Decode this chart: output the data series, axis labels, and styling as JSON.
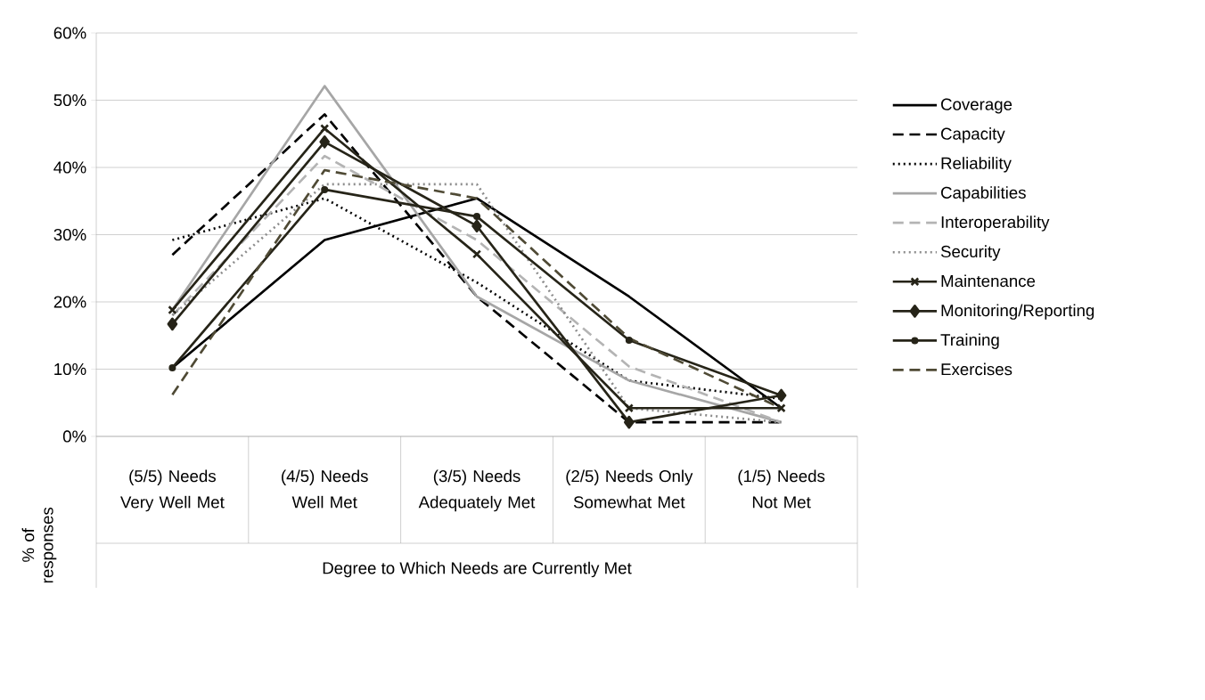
{
  "chart_data": {
    "type": "line",
    "xlabel": "Degree to Which Needs are Currently Met",
    "ylabel": "% of responses",
    "categories": [
      "(5/5) Needs Very Well Met",
      "(4/5) Needs Well Met",
      "(3/5) Needs Adequately Met",
      "(2/5) Needs Only Somewhat Met",
      "(1/5) Needs Not Met"
    ],
    "series": [
      {
        "name": "Coverage",
        "color": "#000000",
        "line_style": "solid",
        "values": [
          10.2,
          29.2,
          35.4,
          20.8,
          4.2
        ]
      },
      {
        "name": "Capacity",
        "color": "#000000",
        "line_style": "dashed",
        "values": [
          27,
          47.9,
          20.8,
          2.1,
          2.1
        ]
      },
      {
        "name": "Reliability",
        "color": "#000000",
        "line_style": "dotted",
        "values": [
          29.2,
          35.4,
          22.9,
          8.3,
          5.6
        ]
      },
      {
        "name": "Capabilities",
        "color": "#a6a6a6",
        "line_style": "solid",
        "values": [
          18.8,
          52.1,
          20.8,
          8.3,
          2.1
        ]
      },
      {
        "name": "Interoperability",
        "color": "#b4b4b4",
        "line_style": "dashed",
        "values": [
          18,
          41.7,
          29.2,
          10.4,
          2.1
        ]
      },
      {
        "name": "Security",
        "color": "#8c8c8c",
        "line_style": "dotted",
        "values": [
          18,
          37.5,
          37.5,
          4.2,
          2.1
        ]
      },
      {
        "name": "Maintenance",
        "color": "#262418",
        "line_style": "solid",
        "marker": "cross",
        "values": [
          18.8,
          45.8,
          27.1,
          4.2,
          4.2
        ]
      },
      {
        "name": "Monitoring/Reporting",
        "color": "#262418",
        "line_style": "solid",
        "marker": "diamond",
        "values": [
          16.7,
          43.8,
          31.3,
          2.1,
          6.1
        ]
      },
      {
        "name": "Training",
        "color": "#262418",
        "line_style": "solid",
        "marker": "circle",
        "values": [
          10.2,
          36.7,
          32.7,
          14.3,
          6.1
        ]
      },
      {
        "name": "Exercises",
        "color": "#4f4a35",
        "line_style": "dashed",
        "values": [
          6.2,
          39.6,
          35.4,
          14.6,
          4.2
        ]
      }
    ],
    "ylim": [
      0,
      60
    ],
    "yticks": [
      {
        "value": 0,
        "label": "0%"
      },
      {
        "value": 10,
        "label": "10%"
      },
      {
        "value": 20,
        "label": "20%"
      },
      {
        "value": 30,
        "label": "30%"
      },
      {
        "value": 40,
        "label": "40%"
      },
      {
        "value": 50,
        "label": "50%"
      },
      {
        "value": 60,
        "label": "60%"
      }
    ],
    "grid": "y",
    "legend": "right"
  }
}
